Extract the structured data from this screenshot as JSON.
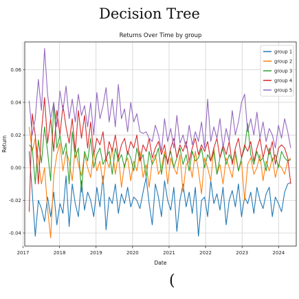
{
  "page": {
    "heading": "Decision Tree",
    "footer_glyph": "("
  },
  "chart_data": {
    "type": "line",
    "title": "Returns Over Time by group",
    "xlabel": "Date",
    "ylabel": "Return",
    "x_start": "2017-03",
    "x_end": "2024-05",
    "x_ticks": [
      "2017",
      "2018",
      "2019",
      "2020",
      "2021",
      "2022",
      "2023",
      "2024"
    ],
    "y_ticks": [
      "-0.04",
      "-0.02",
      "0.00",
      "0.02",
      "0.04",
      "0.06"
    ],
    "ylim": [
      -0.048,
      0.077
    ],
    "grid": true,
    "legend_position": "top-right",
    "series": [
      {
        "name": "group 1",
        "color": "#1f77b4",
        "values": [
          0.01,
          -0.015,
          -0.042,
          -0.02,
          -0.025,
          -0.033,
          -0.018,
          -0.03,
          -0.015,
          -0.035,
          -0.022,
          -0.028,
          -0.005,
          -0.036,
          -0.01,
          -0.022,
          -0.03,
          -0.008,
          -0.026,
          -0.015,
          -0.02,
          -0.03,
          -0.012,
          -0.024,
          -0.005,
          -0.038,
          -0.018,
          -0.022,
          -0.01,
          -0.028,
          -0.016,
          -0.022,
          -0.012,
          -0.024,
          -0.018,
          -0.02,
          -0.025,
          -0.015,
          -0.006,
          -0.022,
          -0.035,
          -0.01,
          -0.018,
          -0.03,
          -0.008,
          -0.02,
          -0.026,
          -0.012,
          -0.039,
          -0.02,
          -0.01,
          -0.024,
          -0.015,
          -0.028,
          -0.012,
          -0.042,
          -0.02,
          -0.018,
          -0.03,
          -0.008,
          -0.022,
          -0.016,
          -0.026,
          -0.012,
          -0.035,
          -0.02,
          -0.014,
          -0.024,
          -0.01,
          -0.03,
          -0.018,
          -0.022,
          -0.015,
          -0.028,
          -0.012,
          -0.02,
          -0.025,
          -0.016,
          -0.012,
          -0.03,
          -0.018,
          -0.022,
          -0.027,
          -0.015,
          -0.01,
          -0.009
        ]
      },
      {
        "name": "group 2",
        "color": "#ff7f0e",
        "values": [
          0.025,
          0.01,
          0.018,
          0.005,
          -0.01,
          0.0,
          -0.025,
          -0.043,
          -0.005,
          0.008,
          0.015,
          -0.002,
          0.01,
          0.004,
          -0.008,
          0.012,
          0.002,
          -0.005,
          0.008,
          0.0,
          -0.006,
          0.01,
          -0.002,
          0.004,
          -0.01,
          0.006,
          0.0,
          0.012,
          -0.004,
          0.008,
          -0.012,
          0.002,
          0.006,
          -0.008,
          0.004,
          -0.002,
          0.01,
          -0.006,
          0.002,
          -0.012,
          0.004,
          0.008,
          -0.004,
          0.0,
          0.01,
          -0.01,
          0.006,
          0.0,
          -0.004,
          0.008,
          -0.015,
          0.002,
          0.004,
          -0.006,
          0.01,
          -0.002,
          -0.016,
          0.006,
          0.0,
          -0.008,
          0.012,
          -0.004,
          0.002,
          -0.01,
          0.006,
          0.0,
          -0.006,
          0.008,
          -0.002,
          0.004,
          -0.02,
          0.002,
          0.006,
          -0.004,
          0.0,
          0.008,
          -0.008,
          0.004,
          -0.002,
          0.006,
          -0.006,
          0.002,
          0.0,
          -0.004,
          0.004,
          0.006
        ]
      },
      {
        "name": "group 3",
        "color": "#2ca02c",
        "values": [
          0.014,
          0.012,
          -0.01,
          0.017,
          0.003,
          0.025,
          0.01,
          -0.008,
          0.04,
          0.012,
          0.02,
          0.008,
          0.015,
          -0.01,
          0.022,
          0.006,
          0.012,
          -0.015,
          0.01,
          0.004,
          0.018,
          0.0,
          0.008,
          0.012,
          0.002,
          0.006,
          0.01,
          -0.004,
          0.012,
          0.004,
          0.008,
          0.0,
          0.01,
          0.006,
          -0.002,
          0.012,
          0.004,
          0.008,
          -0.006,
          0.01,
          0.002,
          0.006,
          0.012,
          -0.004,
          0.008,
          0.004,
          0.01,
          0.0,
          0.006,
          0.012,
          0.002,
          0.008,
          -0.002,
          0.01,
          0.004,
          0.006,
          0.012,
          0.0,
          0.008,
          0.004,
          0.01,
          -0.004,
          0.006,
          0.012,
          0.002,
          0.008,
          0.004,
          0.01,
          -0.002,
          0.006,
          0.012,
          0.027,
          0.008,
          0.002,
          0.01,
          0.004,
          0.006,
          -0.002,
          0.012,
          0.004,
          0.008,
          0.0,
          0.01,
          0.006,
          0.004,
          0.005
        ]
      },
      {
        "name": "group 4",
        "color": "#d62728",
        "values": [
          -0.027,
          0.033,
          0.02,
          -0.01,
          0.022,
          0.043,
          0.015,
          0.03,
          0.01,
          0.035,
          0.02,
          0.038,
          0.025,
          0.015,
          0.03,
          0.01,
          0.035,
          0.018,
          0.032,
          0.012,
          0.028,
          0.008,
          0.018,
          0.014,
          0.022,
          0.004,
          0.016,
          0.01,
          0.02,
          0.006,
          0.014,
          0.018,
          0.008,
          0.016,
          0.012,
          0.02,
          0.004,
          0.014,
          0.01,
          0.018,
          0.006,
          0.012,
          0.016,
          0.008,
          0.014,
          0.002,
          0.012,
          0.018,
          0.006,
          0.014,
          0.01,
          0.016,
          0.004,
          0.012,
          0.018,
          0.008,
          0.014,
          0.01,
          0.016,
          0.004,
          0.012,
          0.018,
          0.006,
          0.014,
          0.008,
          0.016,
          0.002,
          0.012,
          0.018,
          0.006,
          0.014,
          0.01,
          0.016,
          0.004,
          0.012,
          0.018,
          0.006,
          0.014,
          0.008,
          0.016,
          0.002,
          0.012,
          0.014,
          0.012,
          0.006,
          -0.01
        ]
      },
      {
        "name": "group 5",
        "color": "#9467bd",
        "values": [
          0.041,
          0.02,
          0.03,
          0.054,
          0.035,
          0.073,
          0.045,
          0.03,
          0.04,
          0.025,
          0.047,
          0.035,
          0.05,
          0.03,
          0.042,
          0.028,
          0.045,
          0.032,
          0.038,
          0.025,
          0.04,
          0.02,
          0.046,
          0.03,
          0.038,
          0.049,
          0.028,
          0.042,
          0.025,
          0.051,
          0.03,
          0.036,
          0.022,
          0.04,
          0.028,
          0.033,
          0.022,
          0.021,
          0.022,
          0.018,
          0.016,
          0.026,
          0.02,
          0.01,
          0.03,
          0.016,
          0.024,
          0.012,
          0.032,
          0.015,
          0.02,
          0.012,
          0.026,
          0.014,
          0.022,
          0.016,
          0.028,
          0.012,
          0.042,
          0.016,
          0.025,
          0.018,
          0.03,
          0.012,
          0.024,
          0.016,
          0.035,
          0.02,
          0.028,
          0.04,
          0.045,
          0.022,
          0.03,
          0.02,
          0.034,
          0.018,
          0.028,
          0.016,
          0.024,
          0.02,
          0.012,
          0.026,
          0.018,
          0.03,
          0.022,
          0.012
        ]
      }
    ]
  }
}
